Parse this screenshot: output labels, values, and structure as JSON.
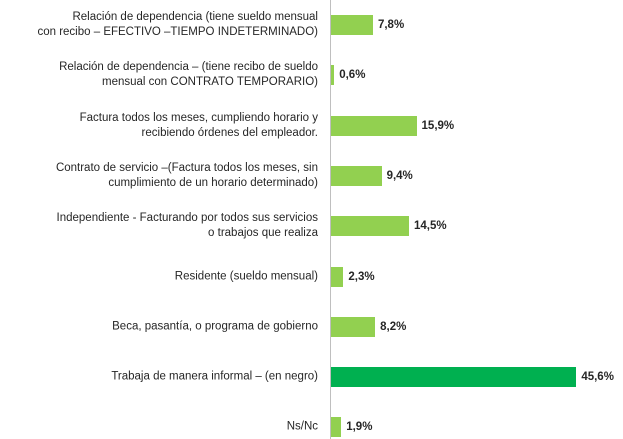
{
  "chart_data": {
    "type": "barh",
    "categories": [
      "Relación de dependencia (tiene sueldo mensual\ncon recibo – EFECTIVO –TIEMPO INDETERMINADO)",
      "Relación de dependencia – (tiene recibo de sueldo\nmensual con CONTRATO TEMPORARIO)",
      "Factura todos los meses, cumpliendo horario y\nrecibiendo órdenes del empleador.",
      "Contrato de servicio –(Factura todos los meses, sin\ncumplimiento de un horario determinado)",
      "Independiente - Facturando por todos sus servicios\no trabajos que realiza",
      "Residente (sueldo mensual)",
      "Beca, pasantía, o programa de gobierno",
      "Trabaja de manera informal – (en negro)",
      "Ns/Nc"
    ],
    "values": [
      7.8,
      0.6,
      15.9,
      9.4,
      14.5,
      2.3,
      8.2,
      45.6,
      1.9
    ],
    "value_labels": [
      "7,8%",
      "0,6%",
      "15,9%",
      "9,4%",
      "14,5%",
      "2,3%",
      "8,2%",
      "45,6%",
      "1,9%"
    ],
    "colors": [
      "#92d050",
      "#92d050",
      "#92d050",
      "#92d050",
      "#92d050",
      "#92d050",
      "#92d050",
      "#00b050",
      "#92d050"
    ],
    "xlim": [
      0,
      50
    ]
  }
}
